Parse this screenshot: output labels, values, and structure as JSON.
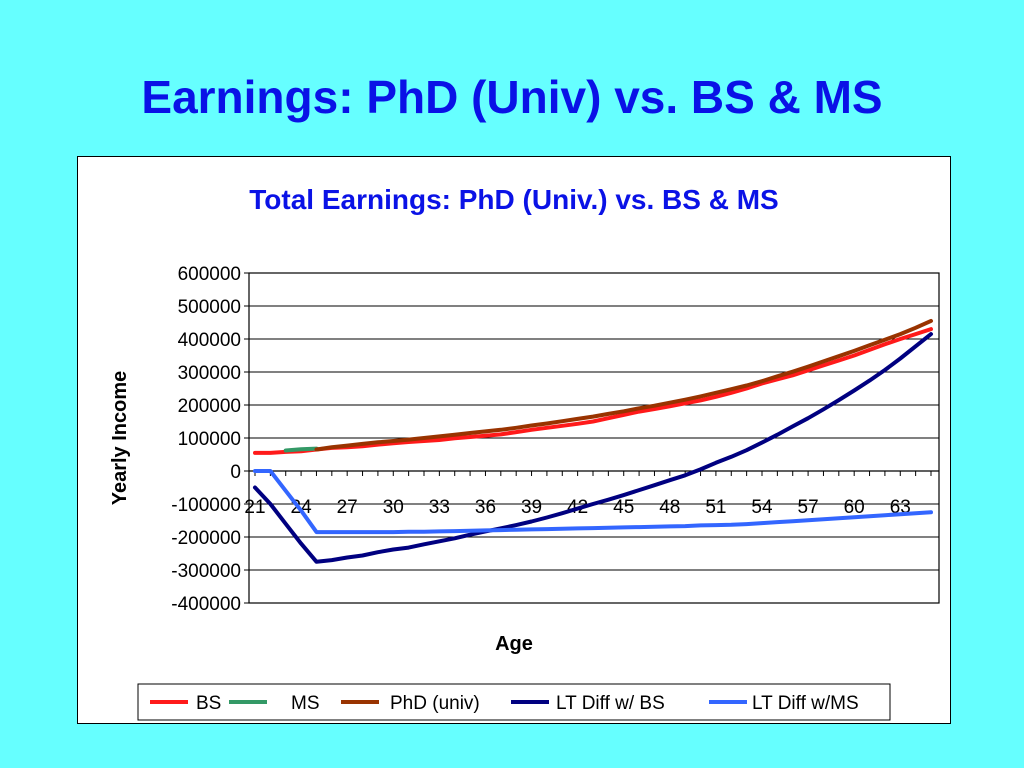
{
  "slide": {
    "title": "Earnings: PhD (Univ) vs. BS & MS"
  },
  "chart_data": {
    "type": "line",
    "title": "Total Earnings: PhD (Univ.) vs. BS & MS",
    "xlabel": "Age",
    "ylabel": "Yearly Income",
    "ylim": [
      -400000,
      600000
    ],
    "yticks": [
      600000,
      500000,
      400000,
      300000,
      200000,
      100000,
      0,
      -100000,
      -200000,
      -300000,
      -400000
    ],
    "xtick_labels": [
      "21",
      "24",
      "27",
      "30",
      "33",
      "36",
      "39",
      "42",
      "45",
      "48",
      "51",
      "54",
      "57",
      "60",
      "63"
    ],
    "x": [
      21,
      22,
      23,
      24,
      25,
      26,
      27,
      28,
      29,
      30,
      31,
      32,
      33,
      34,
      35,
      36,
      37,
      38,
      39,
      40,
      41,
      42,
      43,
      44,
      45,
      46,
      47,
      48,
      49,
      50,
      51,
      52,
      53,
      54,
      55,
      56,
      57,
      58,
      59,
      60,
      61,
      62,
      63,
      64,
      65
    ],
    "grid": true,
    "legend_position": "bottom",
    "series": [
      {
        "name": "BS",
        "color": "#ff1a1a",
        "values": [
          55000,
          55000,
          58000,
          60000,
          65000,
          70000,
          72000,
          75000,
          80000,
          84000,
          88000,
          91000,
          94000,
          99000,
          103000,
          107000,
          111000,
          118000,
          125000,
          131000,
          137000,
          143000,
          150000,
          160000,
          170000,
          180000,
          188000,
          196000,
          205000,
          214000,
          225000,
          237000,
          250000,
          265000,
          278000,
          290000,
          305000,
          320000,
          335000,
          350000,
          367000,
          384000,
          400000,
          415000,
          430000
        ]
      },
      {
        "name": "MS",
        "color": "#339966",
        "values": [
          null,
          null,
          62000,
          66000,
          68000,
          null,
          null,
          null,
          null,
          null,
          null,
          null,
          null,
          null,
          null,
          null,
          null,
          null,
          null,
          null,
          null,
          null,
          null,
          null,
          null,
          null,
          null,
          null,
          null,
          null,
          null,
          null,
          null,
          null,
          null,
          null,
          null,
          null,
          null,
          null,
          null,
          null,
          null,
          null,
          null
        ]
      },
      {
        "name": "PhD (univ)",
        "color": "#993300",
        "values": [
          null,
          null,
          null,
          null,
          65000,
          72000,
          77000,
          82000,
          87000,
          91000,
          95000,
          100000,
          105000,
          110000,
          115000,
          120000,
          125000,
          131000,
          138000,
          144000,
          151000,
          158000,
          165000,
          173000,
          181000,
          190000,
          198000,
          207000,
          216000,
          226000,
          237000,
          248000,
          259000,
          272000,
          287000,
          301000,
          316000,
          332000,
          348000,
          364000,
          381000,
          398000,
          415000,
          434000,
          455000
        ]
      },
      {
        "name": "LT Diff w/ BS",
        "color": "#000080",
        "values": [
          -50000,
          -100000,
          -160000,
          -220000,
          -275000,
          -270000,
          -262000,
          -256000,
          -246000,
          -238000,
          -232000,
          -222000,
          -213000,
          -204000,
          -193000,
          -183000,
          -174000,
          -164000,
          -153000,
          -141000,
          -128000,
          -114000,
          -100000,
          -87000,
          -73000,
          -58000,
          -43000,
          -28000,
          -13000,
          5000,
          25000,
          43000,
          63000,
          86000,
          110000,
          135000,
          160000,
          187000,
          215000,
          244000,
          274000,
          306000,
          341000,
          378000,
          415000
        ]
      },
      {
        "name": "LT Diff w/MS",
        "color": "#3366ff",
        "values": [
          0,
          0,
          -60000,
          -120000,
          -185000,
          -185000,
          -185000,
          -185000,
          -185000,
          -185000,
          -184000,
          -184000,
          -183000,
          -182000,
          -181000,
          -180000,
          -179000,
          -178000,
          -177000,
          -176000,
          -175000,
          -174000,
          -173000,
          -172000,
          -171000,
          -170000,
          -169000,
          -168000,
          -167000,
          -165000,
          -164000,
          -163000,
          -161000,
          -158000,
          -155000,
          -152000,
          -149000,
          -146000,
          -143000,
          -140000,
          -137000,
          -134000,
          -131000,
          -128000,
          -125000
        ]
      }
    ]
  }
}
